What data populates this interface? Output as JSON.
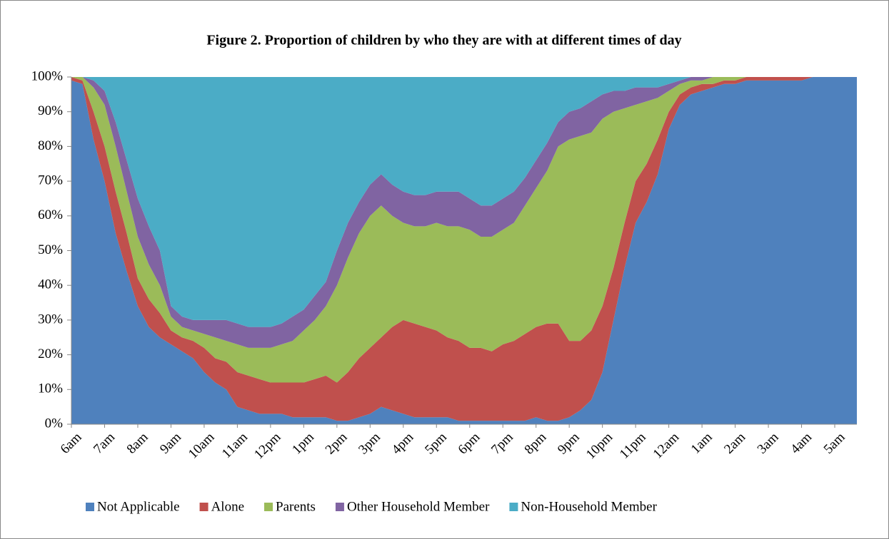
{
  "chart_data": {
    "type": "stacked_area",
    "title": "Figure 2. Proportion of children by who they are with at different times of day",
    "categories": [
      "6am",
      null,
      null,
      "7am",
      null,
      null,
      "8am",
      null,
      null,
      "9am",
      null,
      null,
      "10am",
      null,
      null,
      "11am",
      null,
      null,
      "12pm",
      null,
      null,
      "1pm",
      null,
      null,
      "2pm",
      null,
      null,
      "3pm",
      null,
      null,
      "4pm",
      null,
      null,
      "5pm",
      null,
      null,
      "6pm",
      null,
      null,
      "7pm",
      null,
      null,
      "8pm",
      null,
      null,
      "9pm",
      null,
      null,
      "10pm",
      null,
      null,
      "11pm",
      null,
      null,
      "12am",
      null,
      null,
      "1am",
      null,
      null,
      "2am",
      null,
      null,
      "3am",
      null,
      null,
      "4am",
      null,
      null,
      "5am",
      null,
      null
    ],
    "series": [
      {
        "name": "Not Applicable",
        "color": "#4f81bd",
        "values": [
          99,
          98,
          82,
          70,
          55,
          44,
          34,
          28,
          25,
          23,
          21,
          19,
          15,
          12,
          10,
          5,
          4,
          3,
          3,
          3,
          2,
          2,
          2,
          2,
          1,
          1,
          2,
          3,
          5,
          4,
          3,
          2,
          2,
          2,
          2,
          1,
          1,
          1,
          1,
          1,
          1,
          1,
          2,
          1,
          1,
          2,
          4,
          7,
          15,
          30,
          45,
          58,
          64,
          72,
          85,
          92,
          95,
          96,
          97,
          98,
          98,
          99,
          99,
          99,
          99,
          99,
          99,
          100,
          100,
          100,
          100,
          100
        ]
      },
      {
        "name": "Alone",
        "color": "#c0504d",
        "values": [
          1,
          1,
          8,
          10,
          12,
          11,
          8,
          8,
          7,
          4,
          4,
          5,
          7,
          7,
          8,
          10,
          10,
          10,
          9,
          9,
          10,
          10,
          11,
          12,
          11,
          14,
          17,
          19,
          20,
          24,
          27,
          27,
          26,
          25,
          23,
          23,
          21,
          21,
          20,
          22,
          23,
          25,
          26,
          28,
          28,
          22,
          20,
          20,
          19,
          15,
          13,
          12,
          11,
          10,
          5,
          3,
          2,
          2,
          1,
          1,
          1,
          1,
          1,
          1,
          1,
          1,
          1,
          0,
          0,
          0,
          0,
          0
        ]
      },
      {
        "name": "Parents",
        "color": "#9bbb59",
        "values": [
          0,
          1,
          7,
          12,
          13,
          12,
          12,
          10,
          8,
          4,
          3,
          3,
          4,
          6,
          6,
          8,
          8,
          9,
          10,
          11,
          12,
          15,
          17,
          20,
          28,
          33,
          36,
          38,
          38,
          32,
          28,
          28,
          29,
          31,
          32,
          33,
          34,
          32,
          33,
          33,
          34,
          37,
          40,
          44,
          51,
          58,
          59,
          57,
          54,
          45,
          33,
          22,
          18,
          12,
          6,
          3,
          2,
          1,
          2,
          1,
          1,
          0,
          0,
          0,
          0,
          0,
          0,
          0,
          0,
          0,
          0,
          0
        ]
      },
      {
        "name": "Other Household Member",
        "color": "#8064a2",
        "values": [
          0,
          0,
          2,
          4,
          7,
          9,
          11,
          11,
          10,
          3,
          3,
          3,
          4,
          5,
          6,
          6,
          6,
          6,
          6,
          6,
          7,
          6,
          7,
          7,
          10,
          10,
          9,
          9,
          9,
          9,
          9,
          9,
          9,
          9,
          10,
          10,
          9,
          9,
          9,
          9,
          9,
          8,
          8,
          8,
          7,
          8,
          8,
          9,
          7,
          6,
          5,
          5,
          4,
          3,
          2,
          1,
          1,
          1,
          0,
          0,
          0,
          0,
          0,
          0,
          0,
          0,
          0,
          0,
          0,
          0,
          0,
          0
        ]
      },
      {
        "name": "Non-Household Member",
        "color": "#4bacc6",
        "values": [
          0,
          0,
          1,
          4,
          13,
          24,
          35,
          43,
          50,
          66,
          69,
          70,
          70,
          70,
          70,
          71,
          72,
          72,
          72,
          71,
          69,
          67,
          63,
          59,
          50,
          42,
          36,
          31,
          28,
          31,
          33,
          34,
          34,
          33,
          33,
          33,
          35,
          37,
          37,
          35,
          33,
          29,
          24,
          19,
          13,
          10,
          9,
          7,
          5,
          4,
          4,
          3,
          3,
          3,
          2,
          1,
          0,
          0,
          0,
          0,
          0,
          0,
          0,
          0,
          0,
          0,
          0,
          0,
          0,
          0,
          0,
          0
        ]
      }
    ],
    "ylim": [
      0,
      100
    ],
    "yticks": [
      {
        "value": 0,
        "label": "0%"
      },
      {
        "value": 10,
        "label": "10%"
      },
      {
        "value": 20,
        "label": "20%"
      },
      {
        "value": 30,
        "label": "30%"
      },
      {
        "value": 40,
        "label": "40%"
      },
      {
        "value": 50,
        "label": "50%"
      },
      {
        "value": 60,
        "label": "60%"
      },
      {
        "value": 70,
        "label": "70%"
      },
      {
        "value": 80,
        "label": "80%"
      },
      {
        "value": 90,
        "label": "90%"
      },
      {
        "value": 100,
        "label": "100%"
      }
    ],
    "legend": "bottom"
  }
}
